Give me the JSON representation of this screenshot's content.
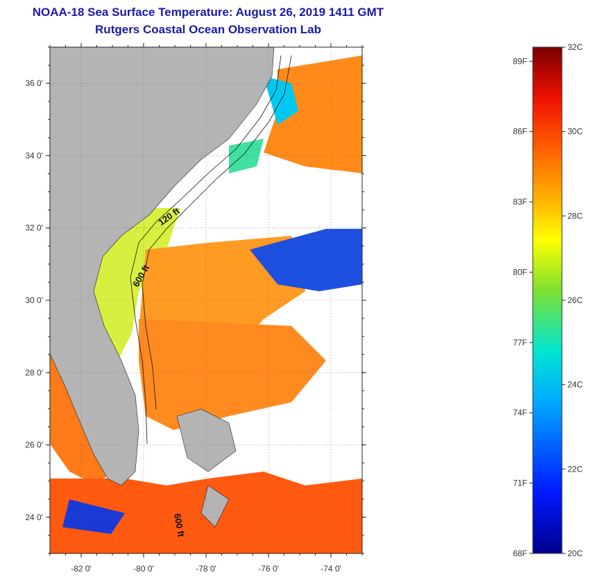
{
  "header": {
    "title": "NOAA-18 Sea Surface Temperature:  August 26, 2019 1411 GMT",
    "subtitle": "Rutgers Coastal Ocean Observation Lab"
  },
  "map": {
    "lon_range": [
      -83,
      -73
    ],
    "lat_range": [
      23,
      37
    ],
    "lat_labels": [
      "24 0'",
      "26 0'",
      "28 0'",
      "30 0'",
      "32 0'",
      "34 0'",
      "36 0'"
    ],
    "lat_values": [
      24,
      26,
      28,
      30,
      32,
      34,
      36
    ],
    "lon_labels": [
      "-82 0'",
      "-80 0'",
      "-78 0'",
      "-76 0'",
      "-74 0'"
    ],
    "lon_values": [
      -82,
      -80,
      -78,
      -76,
      -74
    ],
    "contour_labels": [
      "120 ft",
      "600 ft",
      "600 ft"
    ],
    "land_color": "#b4b4b4",
    "cloud_color": "#ffffff"
  },
  "colorbar": {
    "celsius_labels": [
      "32C",
      "30C",
      "28C",
      "26C",
      "24C",
      "22C",
      "20C"
    ],
    "celsius_values": [
      32,
      30,
      28,
      26,
      24,
      22,
      20
    ],
    "fahrenheit_labels": [
      "89F",
      "86F",
      "83F",
      "80F",
      "77F",
      "74F",
      "71F",
      "68F"
    ],
    "fahrenheit_values": [
      89,
      86,
      83,
      80,
      77,
      74,
      71,
      68
    ],
    "range_c": [
      20,
      32
    ]
  }
}
